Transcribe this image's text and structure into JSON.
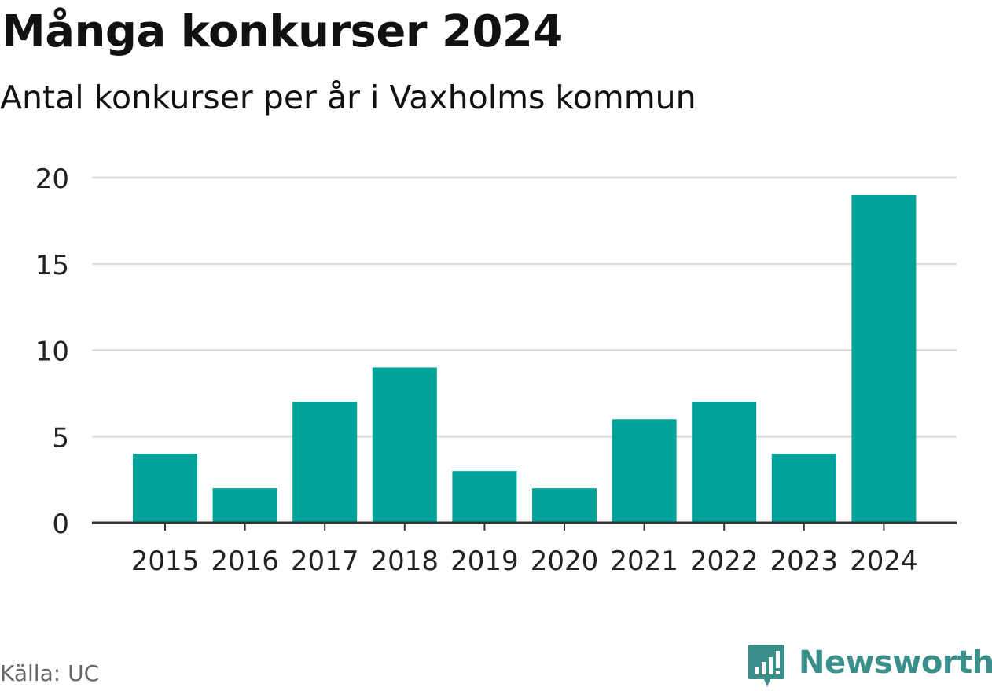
{
  "header": {
    "title": "Många konkurser 2024",
    "subtitle": "Antal konkurser per år i Vaxholms kommun"
  },
  "footer": {
    "source": "Källa: UC",
    "brand": "Newsworthy",
    "brand_icon": "newsworthy-logo-icon"
  },
  "colors": {
    "bar": "#00a39a",
    "grid": "#dddddd",
    "axis": "#333333",
    "text": "#111111",
    "tick_text": "#222222",
    "brand": "#3a8f8a"
  },
  "chart_data": {
    "type": "bar",
    "title": "Många konkurser 2024",
    "subtitle": "Antal konkurser per år i Vaxholms kommun",
    "xlabel": "",
    "ylabel": "",
    "categories": [
      "2015",
      "2016",
      "2017",
      "2018",
      "2019",
      "2020",
      "2021",
      "2022",
      "2023",
      "2024"
    ],
    "values": [
      4,
      2,
      7,
      9,
      3,
      2,
      6,
      7,
      4,
      19
    ],
    "ylim": [
      0,
      20
    ],
    "yticks": [
      0,
      5,
      10,
      15,
      20
    ],
    "grid": true,
    "legend": "none"
  }
}
